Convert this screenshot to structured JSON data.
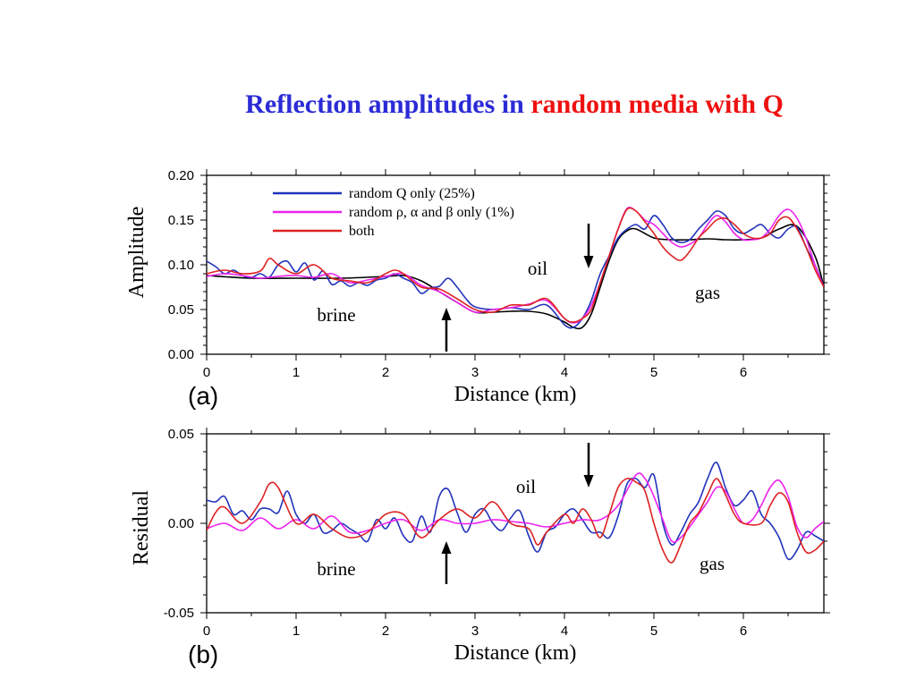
{
  "title": {
    "part1": "Reflection amplitudes in ",
    "part2": "random media with Q"
  },
  "chart_data": [
    {
      "type": "line",
      "panel_label": "(a)",
      "xlabel": "Distance (km)",
      "ylabel": "Amplitude",
      "xlim": [
        0,
        6.9
      ],
      "ylim": [
        0,
        0.2
      ],
      "xticks": [
        "0",
        "1",
        "2",
        "3",
        "4",
        "5",
        "6"
      ],
      "yticks": [
        "0.00",
        "0.05",
        "0.10",
        "0.15",
        "0.20"
      ],
      "legend": {
        "position": "top-left",
        "entries": [
          "random Q only (25%)",
          "random ρ, α and β only (1%)",
          "both"
        ]
      },
      "annotations": [
        {
          "text": "brine",
          "x": 1.45,
          "y": 0.037
        },
        {
          "text": "oil",
          "x": 3.7,
          "y": 0.089
        },
        {
          "text": "gas",
          "x": 5.6,
          "y": 0.062
        }
      ],
      "arrows": [
        {
          "direction": "up",
          "x": 2.68,
          "y_tail": 0.003,
          "y_head": 0.052
        },
        {
          "direction": "down",
          "x": 4.27,
          "y_tail": 0.146,
          "y_head": 0.096
        }
      ],
      "series": [
        {
          "color": "#000000",
          "x": [
            0,
            0.5,
            1,
            1.5,
            2,
            2.2,
            2.4,
            2.6,
            2.8,
            3,
            3.2,
            3.4,
            3.6,
            3.8,
            4,
            4.1,
            4.2,
            4.3,
            4.4,
            4.5,
            4.6,
            4.7,
            4.8,
            5,
            5.2,
            5.4,
            5.6,
            5.8,
            6,
            6.2,
            6.4,
            6.6,
            6.8,
            6.9
          ],
          "y": [
            0.088,
            0.085,
            0.085,
            0.085,
            0.087,
            0.088,
            0.082,
            0.07,
            0.058,
            0.047,
            0.047,
            0.048,
            0.048,
            0.045,
            0.036,
            0.03,
            0.03,
            0.045,
            0.075,
            0.105,
            0.128,
            0.138,
            0.14,
            0.13,
            0.128,
            0.128,
            0.129,
            0.128,
            0.128,
            0.13,
            0.14,
            0.143,
            0.11,
            0.075
          ]
        },
        {
          "color": "#2233bb",
          "name": "random Q only (25%)",
          "x": [
            0,
            0.1,
            0.2,
            0.3,
            0.4,
            0.5,
            0.6,
            0.7,
            0.8,
            0.9,
            1,
            1.1,
            1.2,
            1.3,
            1.4,
            1.5,
            1.6,
            1.7,
            1.8,
            1.9,
            2,
            2.1,
            2.2,
            2.3,
            2.4,
            2.5,
            2.6,
            2.7,
            2.8,
            2.9,
            3,
            3.2,
            3.4,
            3.6,
            3.8,
            4,
            4.1,
            4.2,
            4.3,
            4.4,
            4.5,
            4.6,
            4.7,
            4.8,
            4.9,
            5,
            5.1,
            5.2,
            5.3,
            5.4,
            5.5,
            5.6,
            5.7,
            5.8,
            5.9,
            6,
            6.1,
            6.2,
            6.3,
            6.4,
            6.5,
            6.6,
            6.7,
            6.8,
            6.9
          ],
          "y": [
            0.104,
            0.098,
            0.09,
            0.094,
            0.088,
            0.086,
            0.09,
            0.086,
            0.1,
            0.104,
            0.092,
            0.102,
            0.083,
            0.093,
            0.078,
            0.082,
            0.076,
            0.08,
            0.077,
            0.083,
            0.085,
            0.09,
            0.085,
            0.08,
            0.068,
            0.074,
            0.076,
            0.085,
            0.075,
            0.062,
            0.053,
            0.05,
            0.052,
            0.05,
            0.055,
            0.033,
            0.03,
            0.04,
            0.06,
            0.09,
            0.11,
            0.13,
            0.14,
            0.145,
            0.14,
            0.155,
            0.145,
            0.13,
            0.125,
            0.128,
            0.14,
            0.15,
            0.16,
            0.155,
            0.14,
            0.135,
            0.14,
            0.145,
            0.135,
            0.13,
            0.14,
            0.142,
            0.12,
            0.1,
            0.075
          ]
        },
        {
          "color": "#ee22ee",
          "name": "random ρ, α and β only (1%)",
          "x": [
            0,
            0.2,
            0.4,
            0.6,
            0.8,
            1,
            1.2,
            1.4,
            1.6,
            1.8,
            2,
            2.2,
            2.4,
            2.6,
            2.8,
            3,
            3.2,
            3.4,
            3.6,
            3.8,
            4,
            4.1,
            4.2,
            4.3,
            4.4,
            4.5,
            4.6,
            4.7,
            4.8,
            4.9,
            5,
            5.1,
            5.2,
            5.3,
            5.4,
            5.5,
            5.6,
            5.7,
            5.8,
            5.9,
            6,
            6.1,
            6.2,
            6.3,
            6.4,
            6.5,
            6.6,
            6.7,
            6.8,
            6.9
          ],
          "y": [
            0.087,
            0.09,
            0.088,
            0.085,
            0.087,
            0.088,
            0.086,
            0.09,
            0.08,
            0.083,
            0.087,
            0.09,
            0.077,
            0.07,
            0.058,
            0.047,
            0.05,
            0.052,
            0.056,
            0.06,
            0.04,
            0.035,
            0.04,
            0.055,
            0.08,
            0.11,
            0.14,
            0.163,
            0.16,
            0.15,
            0.145,
            0.135,
            0.125,
            0.12,
            0.123,
            0.13,
            0.145,
            0.155,
            0.148,
            0.135,
            0.128,
            0.128,
            0.13,
            0.14,
            0.155,
            0.162,
            0.152,
            0.13,
            0.1,
            0.075
          ]
        },
        {
          "color": "#dd2222",
          "name": "both",
          "x": [
            0,
            0.2,
            0.4,
            0.6,
            0.7,
            0.8,
            1,
            1.2,
            1.4,
            1.6,
            1.8,
            2,
            2.1,
            2.2,
            2.4,
            2.6,
            2.8,
            3,
            3.2,
            3.4,
            3.6,
            3.8,
            4,
            4.1,
            4.2,
            4.3,
            4.4,
            4.5,
            4.6,
            4.7,
            4.8,
            4.9,
            5,
            5.1,
            5.2,
            5.3,
            5.4,
            5.5,
            5.6,
            5.7,
            5.8,
            5.9,
            6,
            6.1,
            6.2,
            6.3,
            6.4,
            6.5,
            6.6,
            6.7,
            6.8,
            6.9
          ],
          "y": [
            0.09,
            0.094,
            0.09,
            0.093,
            0.107,
            0.1,
            0.09,
            0.1,
            0.085,
            0.082,
            0.08,
            0.09,
            0.094,
            0.09,
            0.075,
            0.073,
            0.062,
            0.05,
            0.047,
            0.055,
            0.055,
            0.062,
            0.04,
            0.036,
            0.04,
            0.05,
            0.08,
            0.11,
            0.14,
            0.162,
            0.16,
            0.148,
            0.135,
            0.12,
            0.11,
            0.105,
            0.115,
            0.13,
            0.14,
            0.15,
            0.152,
            0.145,
            0.135,
            0.13,
            0.13,
            0.135,
            0.15,
            0.153,
            0.14,
            0.12,
            0.095,
            0.075
          ]
        }
      ]
    },
    {
      "type": "line",
      "panel_label": "(b)",
      "xlabel": "Distance (km)",
      "ylabel": "Residual",
      "xlim": [
        0,
        6.9
      ],
      "ylim": [
        -0.05,
        0.05
      ],
      "xticks": [
        "0",
        "1",
        "2",
        "3",
        "4",
        "5",
        "6"
      ],
      "yticks": [
        "-0.05",
        "0.00",
        "0.05"
      ],
      "annotations": [
        {
          "text": "brine",
          "x": 1.45,
          "y": -0.029
        },
        {
          "text": "oil",
          "x": 3.57,
          "y": 0.017
        },
        {
          "text": "gas",
          "x": 5.65,
          "y": -0.026
        }
      ],
      "arrows": [
        {
          "direction": "up",
          "x": 2.68,
          "y_tail": -0.034,
          "y_head": -0.01
        },
        {
          "direction": "down",
          "x": 4.27,
          "y_tail": 0.045,
          "y_head": 0.02
        }
      ],
      "series": [
        {
          "color": "#2233bb",
          "name": "random Q only (25%)",
          "x": [
            0,
            0.1,
            0.2,
            0.3,
            0.4,
            0.5,
            0.6,
            0.7,
            0.8,
            0.9,
            1,
            1.1,
            1.2,
            1.3,
            1.4,
            1.5,
            1.6,
            1.7,
            1.8,
            1.9,
            2,
            2.1,
            2.2,
            2.3,
            2.4,
            2.5,
            2.6,
            2.7,
            2.8,
            2.9,
            3,
            3.1,
            3.2,
            3.3,
            3.4,
            3.5,
            3.6,
            3.7,
            3.8,
            3.9,
            4,
            4.1,
            4.2,
            4.3,
            4.4,
            4.5,
            4.6,
            4.7,
            4.8,
            4.9,
            5,
            5.1,
            5.2,
            5.3,
            5.4,
            5.5,
            5.6,
            5.7,
            5.8,
            5.9,
            6,
            6.1,
            6.2,
            6.3,
            6.4,
            6.5,
            6.6,
            6.7,
            6.8,
            6.9
          ],
          "y": [
            0.013,
            0.012,
            0.015,
            0.005,
            0.007,
            0.002,
            0.008,
            0.008,
            0.006,
            0.018,
            0.005,
            0.0,
            0.005,
            -0.005,
            -0.004,
            0.0,
            -0.003,
            -0.006,
            -0.01,
            0.002,
            -0.003,
            0.003,
            -0.007,
            -0.01,
            0.004,
            -0.005,
            0.015,
            0.019,
            0.006,
            -0.005,
            0.005,
            0.008,
            0.0,
            -0.004,
            0.003,
            0.007,
            -0.007,
            -0.016,
            -0.005,
            -0.002,
            0.005,
            0.008,
            0.002,
            -0.005,
            -0.005,
            -0.008,
            0.004,
            0.022,
            0.025,
            0.02,
            0.027,
            0.0,
            -0.012,
            -0.005,
            0.005,
            0.012,
            0.025,
            0.034,
            0.02,
            0.01,
            0.013,
            0.018,
            0.005,
            0.0,
            -0.008,
            -0.02,
            -0.015,
            -0.005,
            -0.007,
            -0.01
          ]
        },
        {
          "color": "#ee22ee",
          "name": "random ρ, α and β only (1%)",
          "x": [
            0,
            0.2,
            0.4,
            0.6,
            0.8,
            1,
            1.2,
            1.4,
            1.6,
            1.8,
            2,
            2.2,
            2.4,
            2.6,
            2.8,
            3,
            3.2,
            3.4,
            3.6,
            3.8,
            4,
            4.2,
            4.4,
            4.6,
            4.8,
            4.9,
            5,
            5.1,
            5.2,
            5.3,
            5.4,
            5.5,
            5.6,
            5.7,
            5.8,
            5.9,
            6,
            6.1,
            6.2,
            6.3,
            6.4,
            6.5,
            6.6,
            6.7,
            6.8,
            6.9
          ],
          "y": [
            -0.003,
            0.0,
            -0.004,
            0.003,
            -0.003,
            0.002,
            -0.003,
            0.004,
            -0.005,
            -0.004,
            0.0,
            0.002,
            -0.004,
            0.002,
            0.0,
            0.0,
            0.002,
            0.001,
            0.0,
            -0.002,
            0.0,
            0.002,
            0.002,
            0.01,
            0.027,
            0.025,
            0.015,
            0.002,
            -0.01,
            -0.008,
            -0.002,
            0.005,
            0.012,
            0.02,
            0.018,
            0.008,
            0.0,
            0.002,
            0.01,
            0.02,
            0.024,
            0.015,
            -0.002,
            -0.008,
            -0.003,
            0.001
          ]
        },
        {
          "color": "#dd2222",
          "name": "both",
          "x": [
            0,
            0.1,
            0.2,
            0.4,
            0.6,
            0.7,
            0.8,
            1,
            1.2,
            1.4,
            1.6,
            1.8,
            2,
            2.2,
            2.4,
            2.6,
            2.8,
            3,
            3.2,
            3.4,
            3.6,
            3.7,
            3.8,
            4,
            4.1,
            4.2,
            4.3,
            4.4,
            4.5,
            4.6,
            4.7,
            4.8,
            4.9,
            5,
            5.1,
            5.2,
            5.3,
            5.4,
            5.5,
            5.6,
            5.7,
            5.8,
            5.9,
            6,
            6.2,
            6.3,
            6.4,
            6.5,
            6.6,
            6.7,
            6.8,
            6.9
          ],
          "y": [
            -0.004,
            0.006,
            0.009,
            0.0,
            0.012,
            0.022,
            0.02,
            0.0,
            0.005,
            -0.003,
            -0.008,
            -0.005,
            0.005,
            0.005,
            -0.008,
            0.002,
            0.008,
            0.003,
            0.012,
            0.0,
            -0.003,
            -0.012,
            -0.005,
            0.005,
            0.0,
            0.008,
            0.002,
            -0.008,
            0.005,
            0.02,
            0.025,
            0.023,
            0.018,
            0.0,
            -0.015,
            -0.022,
            -0.012,
            0.0,
            0.006,
            0.016,
            0.025,
            0.016,
            0.005,
            0.0,
            0.0,
            0.01,
            0.017,
            0.012,
            -0.005,
            -0.016,
            -0.015,
            -0.01
          ]
        }
      ]
    }
  ]
}
